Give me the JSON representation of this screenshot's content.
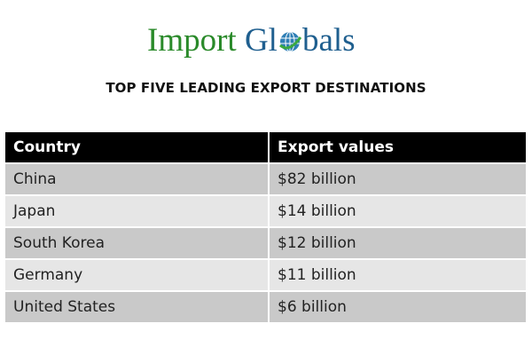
{
  "logo": {
    "part1": "Import",
    "part2": "Gl",
    "part3": "bals",
    "colors": {
      "green": "#2a8a2a",
      "blue": "#1f5f8f"
    },
    "icon": "globe-icon"
  },
  "title": "TOP FIVE LEADING EXPORT DESTINATIONS",
  "table": {
    "headers": [
      "Country",
      "Export values"
    ],
    "rows": [
      [
        "China",
        "$82 billion"
      ],
      [
        "Japan",
        "$14 billion"
      ],
      [
        "South Korea",
        "$12 billion"
      ],
      [
        "Germany",
        "$11 billion"
      ],
      [
        "United States",
        "$6 billion"
      ]
    ]
  }
}
